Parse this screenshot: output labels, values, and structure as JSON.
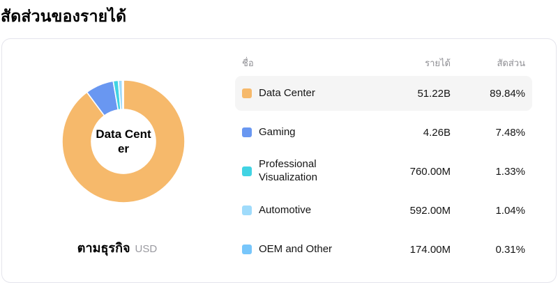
{
  "header": {
    "title": "สัดส่วนของรายได้"
  },
  "chart_data": {
    "type": "pie",
    "donut": true,
    "title": "สัดส่วนของรายได้",
    "subtitle": "ตามธุรกิจ",
    "unit_label": "USD",
    "legend_position": "right-table",
    "center_label_lines": [
      "Data Cent",
      "er"
    ],
    "start_angle_deg": 0,
    "direction": "clockwise",
    "series": [
      {
        "name": "Data Center",
        "revenue_display": "51.22B",
        "value": 51220000000,
        "percent": 89.84,
        "color": "#F6B96B"
      },
      {
        "name": "Gaming",
        "revenue_display": "4.26B",
        "value": 4260000000,
        "percent": 7.48,
        "color": "#6997F1"
      },
      {
        "name": "Professional Visualization",
        "revenue_display": "760.00M",
        "value": 760000000,
        "percent": 1.33,
        "color": "#41D3E3"
      },
      {
        "name": "Automotive",
        "revenue_display": "592.00M",
        "value": 592000000,
        "percent": 1.04,
        "color": "#9FDBFB"
      },
      {
        "name": "OEM and Other",
        "revenue_display": "174.00M",
        "value": 174000000,
        "percent": 0.31,
        "color": "#77C6FB"
      }
    ]
  },
  "table": {
    "headers": [
      "ชื่อ",
      "รายได้",
      "สัดส่วน"
    ],
    "rows": [
      {
        "name": "Data Center",
        "revenue": "51.22B",
        "percent": "89.84%",
        "color": "#F6B96B",
        "highlighted": true
      },
      {
        "name": "Gaming",
        "revenue": "4.26B",
        "percent": "7.48%",
        "color": "#6997F1",
        "highlighted": false
      },
      {
        "name": "Professional Visualization",
        "revenue": "760.00M",
        "percent": "1.33%",
        "color": "#41D3E3",
        "highlighted": false
      },
      {
        "name": "Automotive",
        "revenue": "592.00M",
        "percent": "1.04%",
        "color": "#9FDBFB",
        "highlighted": false
      },
      {
        "name": "OEM and Other",
        "revenue": "174.00M",
        "percent": "0.31%",
        "color": "#77C6FB",
        "highlighted": false
      }
    ]
  },
  "colors": {
    "card_border": "#E4E4EC",
    "row_highlight": "#F5F5F5",
    "header_text": "#8E8E93",
    "body_text": "#141414",
    "slice_gap": "#FFFFFF"
  }
}
